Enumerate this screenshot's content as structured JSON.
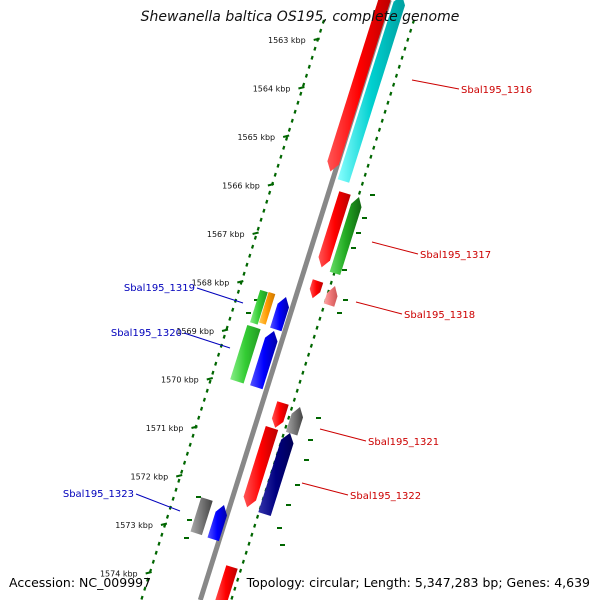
{
  "title": "Shewanella baltica OS195, complete genome",
  "footer": {
    "accession": "Accession: NC_009997",
    "summary": "Topology: circular; Length: 5,347,283 bp; Genes: 4,639"
  },
  "ticks": [
    "1563 kbp",
    "1564 kbp",
    "1565 kbp",
    "1566 kbp",
    "1567 kbp",
    "1568 kbp",
    "1569 kbp",
    "1570 kbp",
    "1571 kbp",
    "1572 kbp",
    "1573 kbp",
    "1574 kbp"
  ],
  "genes_forward": [
    {
      "name": "Sbal195_1316",
      "color": "#ff0000"
    },
    {
      "name": "Sbal195_1316 (cyan)",
      "color": "#00cccc"
    },
    {
      "name": "Sbal195_1317",
      "color": "#ff0000"
    },
    {
      "name": "Sbal195_1317 (green)",
      "color": "#22aa22"
    },
    {
      "name": "Sbal195_1318",
      "color": "#ff0000"
    },
    {
      "name": "Sbal195_1318 (pink)",
      "color": "#ee7777"
    },
    {
      "name": "Sbal195_1321",
      "color": "#ff0000"
    },
    {
      "name": "Sbal195_1321 (grey)",
      "color": "#777777"
    },
    {
      "name": "Sbal195_1322",
      "color": "#ff0000"
    },
    {
      "name": "Sbal195_1322 (navy)",
      "color": "#000080"
    }
  ],
  "genes_reverse": [
    {
      "name": "Sbal195_1319",
      "color": "#33cc33"
    },
    {
      "name": "Sbal195_1319 (orange)",
      "color": "#ff9900"
    },
    {
      "name": "Sbal195_1320",
      "color": "#33cc33"
    },
    {
      "name": "Sbal195_1323",
      "color": "#666666"
    }
  ],
  "labels": {
    "right": [
      "Sbal195_1316",
      "Sbal195_1317",
      "Sbal195_1318",
      "Sbal195_1321",
      "Sbal195_1322"
    ],
    "left": [
      "Sbal195_1319",
      "Sbal195_1320",
      "Sbal195_1323"
    ]
  },
  "colors": {
    "backbone": "#888888",
    "scale": "#006600",
    "label_forward": "#cc0000",
    "label_reverse": "#0000bb"
  }
}
